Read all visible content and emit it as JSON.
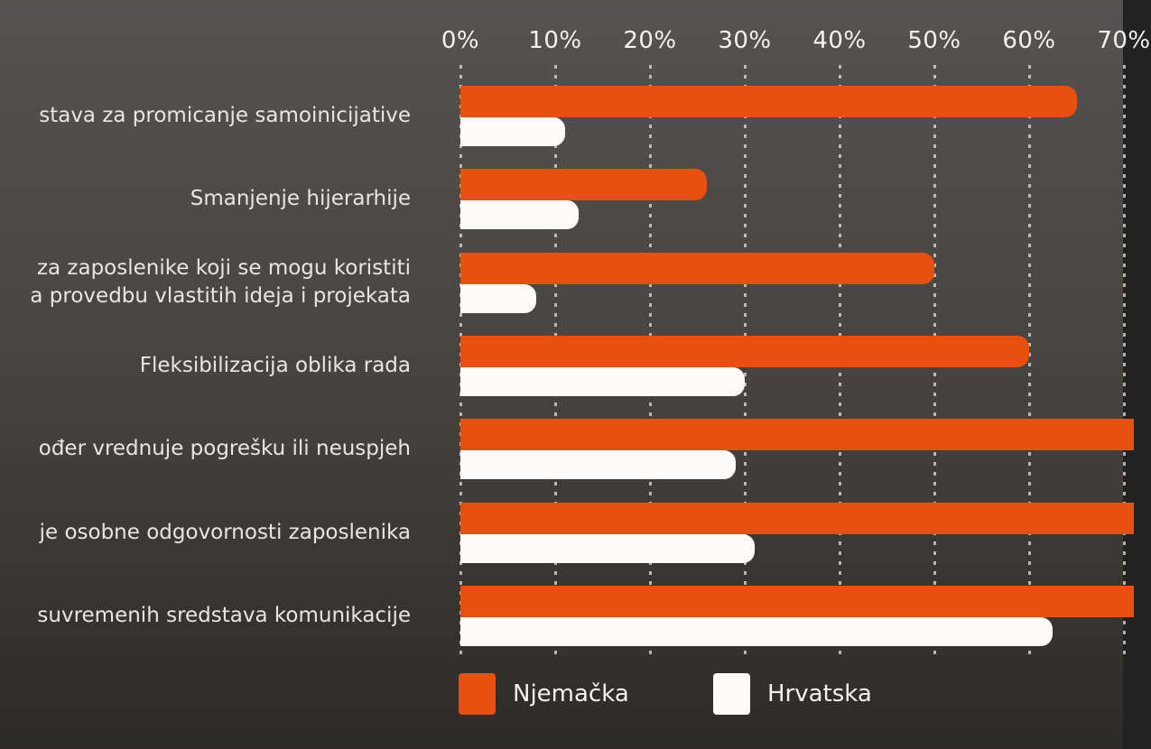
{
  "chart_data": {
    "type": "bar",
    "orientation": "horizontal",
    "title": "",
    "x_axis": {
      "ticks": [
        "0%",
        "10%",
        "20%",
        "30%",
        "40%",
        "50%",
        "60%",
        "70%"
      ],
      "min": 0,
      "max": 70,
      "unit": "%",
      "position": "top"
    },
    "grid": {
      "style": "dotted",
      "direction": "vertical"
    },
    "categories": [
      {
        "lines": [
          "stava za promicanje samoinicijative"
        ]
      },
      {
        "lines": [
          "Smanjenje hijerarhije"
        ]
      },
      {
        "lines": [
          "za zaposlenike koji se mogu koristiti",
          "a provedbu vlastitih ideja i projekata"
        ]
      },
      {
        "lines": [
          "Fleksibilizacija oblika rada"
        ]
      },
      {
        "lines": [
          "ođer vrednuje pogrešku ili neuspjeh"
        ]
      },
      {
        "lines": [
          "je osobne odgovornosti zaposlenika"
        ]
      },
      {
        "lines": [
          "suvremenih sredstava komunikacije"
        ]
      }
    ],
    "series": [
      {
        "name": "Njemačka",
        "color": "#e7500e",
        "values": [
          65,
          26,
          50,
          60,
          71,
          71,
          71
        ],
        "clipped_at_edge": [
          false,
          false,
          false,
          false,
          true,
          true,
          true
        ]
      },
      {
        "name": "Hrvatska",
        "color": "#fcfbf9",
        "values": [
          11,
          12.5,
          8,
          30,
          29,
          31,
          62.5
        ],
        "clipped_at_edge": [
          false,
          false,
          false,
          false,
          false,
          false,
          false
        ]
      }
    ],
    "legend": {
      "position": "bottom",
      "items": [
        {
          "label": "Njemačka",
          "color": "#e7500e"
        },
        {
          "label": "Hrvatska",
          "color": "#fcfbf9"
        }
      ]
    }
  },
  "colors": {
    "background_top": "#545352",
    "background_bottom": "#2c2b29",
    "gridline": "#e2dfdb",
    "tick_label": "#f4f2f0",
    "category_label": "#e8e6e3",
    "legend_label": "#f4f2f0"
  }
}
